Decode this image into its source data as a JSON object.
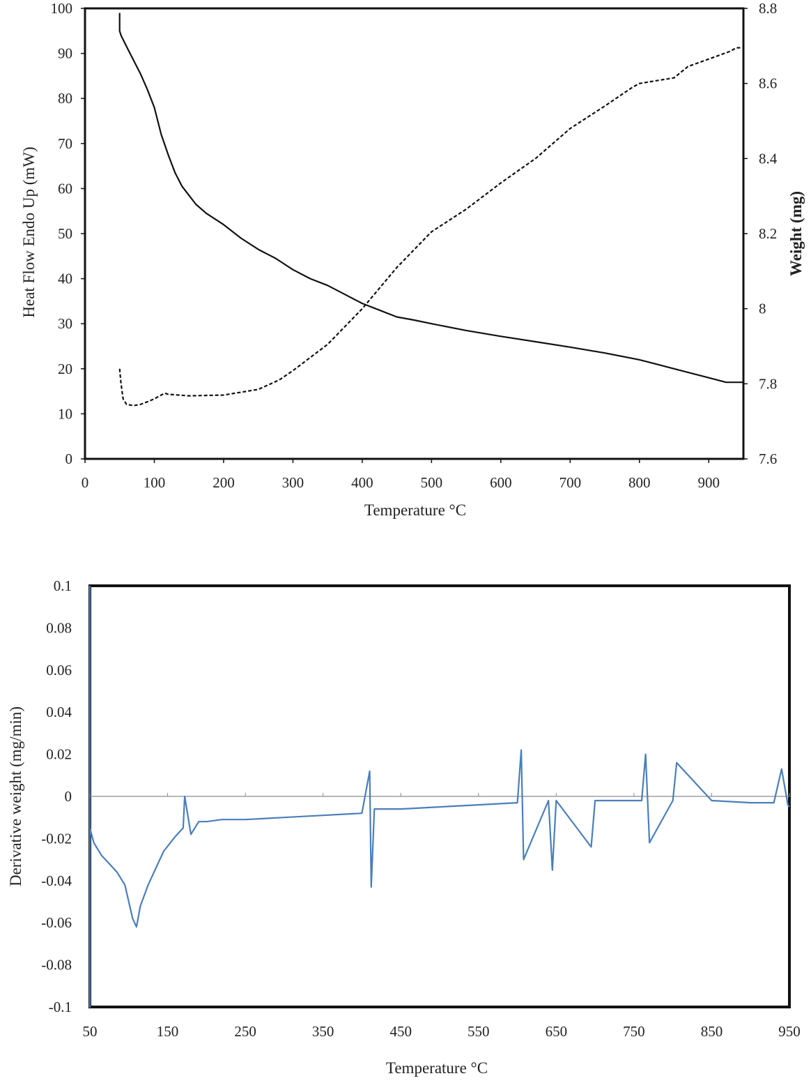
{
  "chart_data": [
    {
      "type": "line",
      "title": "",
      "xlabel": "Temperature °C",
      "ylabel": "Heat Flow Endo Up (mW)",
      "y2label": "Weight (mg)",
      "xlim": [
        0,
        950
      ],
      "ylim": [
        0,
        100
      ],
      "y2lim": [
        7.6,
        8.8
      ],
      "xticks": [
        "0",
        "100",
        "200",
        "300",
        "400",
        "500",
        "600",
        "700",
        "800",
        "900"
      ],
      "yticks": [
        "0",
        "10",
        "20",
        "30",
        "40",
        "50",
        "60",
        "70",
        "80",
        "90",
        "100"
      ],
      "y2ticks": [
        "7.6",
        "7.8",
        "8",
        "8.2",
        "8.4",
        "8.6",
        "8.8"
      ],
      "grid": false,
      "series": [
        {
          "axis": "left",
          "style": "solid",
          "color": "#111111",
          "x": [
            50,
            50,
            52,
            60,
            70,
            80,
            90,
            100,
            110,
            120,
            130,
            140,
            150,
            160,
            175,
            200,
            225,
            250,
            275,
            300,
            325,
            350,
            375,
            400,
            425,
            450,
            475,
            500,
            550,
            600,
            650,
            700,
            750,
            800,
            825,
            850,
            900,
            925,
            950
          ],
          "y": [
            99,
            95,
            94,
            91.5,
            88.5,
            85.5,
            82,
            78,
            72,
            67.5,
            63.5,
            60.5,
            58.5,
            56.5,
            54.5,
            52,
            49,
            46.5,
            44.5,
            42,
            40,
            38.5,
            36.5,
            34.5,
            33,
            31.5,
            30.8,
            30,
            28.5,
            27.2,
            26,
            24.8,
            23.5,
            22,
            21,
            20,
            18,
            17,
            17
          ]
        },
        {
          "axis": "right",
          "style": "dashed",
          "color": "#111111",
          "x": [
            50,
            52,
            55,
            60,
            70,
            80,
            90,
            100,
            110,
            115,
            120,
            150,
            200,
            250,
            280,
            300,
            350,
            400,
            450,
            500,
            550,
            600,
            650,
            700,
            750,
            790,
            800,
            850,
            870,
            900,
            930,
            940,
            950
          ],
          "y": [
            7.84,
            7.8,
            7.76,
            7.745,
            7.742,
            7.745,
            7.752,
            7.76,
            7.77,
            7.775,
            7.772,
            7.768,
            7.77,
            7.785,
            7.81,
            7.835,
            7.905,
            8.0,
            8.11,
            8.205,
            8.265,
            8.335,
            8.4,
            8.48,
            8.54,
            8.59,
            8.6,
            8.615,
            8.645,
            8.665,
            8.685,
            8.695,
            8.695
          ]
        }
      ]
    },
    {
      "type": "line",
      "title": "",
      "xlabel": "Temperature  °C",
      "ylabel": "Derivative weight  (mg/min)",
      "xlim": [
        50,
        950
      ],
      "ylim": [
        -0.1,
        0.1
      ],
      "xticks": [
        "50",
        "150",
        "250",
        "350",
        "450",
        "550",
        "650",
        "750",
        "850",
        "950"
      ],
      "yticks": [
        "-0.1",
        "-0.08",
        "-0.06",
        "-0.04",
        "-0.02",
        "0",
        "0.02",
        "0.04",
        "0.06",
        "0.08",
        "0.1"
      ],
      "grid": false,
      "series": [
        {
          "style": "solid",
          "color": "#4a7ebb",
          "x": [
            50,
            50,
            50,
            50,
            50,
            55,
            65,
            75,
            85,
            95,
            100,
            105,
            110,
            115,
            125,
            135,
            145,
            160,
            170,
            172,
            180,
            190,
            200,
            220,
            250,
            300,
            350,
            400,
            410,
            412,
            416,
            450,
            500,
            550,
            600,
            605,
            608,
            640,
            645,
            650,
            695,
            700,
            760,
            765,
            770,
            800,
            805,
            850,
            900,
            930,
            940,
            948,
            950
          ],
          "y": [
            0.1,
            -0.1,
            -0.01,
            0.005,
            -0.015,
            -0.022,
            -0.028,
            -0.032,
            -0.036,
            -0.042,
            -0.05,
            -0.058,
            -0.062,
            -0.052,
            -0.042,
            -0.034,
            -0.026,
            -0.019,
            -0.015,
            0.0,
            -0.018,
            -0.012,
            -0.012,
            -0.011,
            -0.011,
            -0.01,
            -0.009,
            -0.008,
            0.012,
            -0.043,
            -0.006,
            -0.006,
            -0.005,
            -0.004,
            -0.003,
            0.022,
            -0.03,
            -0.002,
            -0.035,
            -0.002,
            -0.024,
            -0.002,
            -0.002,
            0.02,
            -0.022,
            -0.002,
            0.016,
            -0.002,
            -0.003,
            -0.003,
            0.013,
            -0.004,
            -0.005
          ]
        }
      ]
    }
  ]
}
